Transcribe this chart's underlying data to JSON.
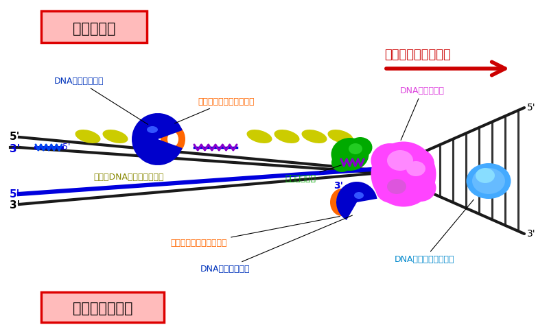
{
  "lagging_label": "ラギング鎖",
  "leading_label": "リーディング鎖",
  "fork_label": "複製フォークの進行",
  "dna_pol_label1": "DNAポリメラーゼ",
  "dna_pol_label2": "DNAポリメラーゼ",
  "sliding_clamp_label1": "スライディングクランプ",
  "sliding_clamp_label2": "スライディングクランプ",
  "ssb_label": "一本鎖DNA結合タンパク質",
  "primase_label": "プライマーゼ",
  "helicase_label": "DNAヘリカーゼ",
  "topoisomerase_label": "DNAトポイソメラーゼ",
  "bg_color": "#ffffff",
  "strand_dark": "#1a1a1a",
  "strand_blue": "#0000dd",
  "ssb_color": "#cccc00",
  "clamp_orange": "#ff6600",
  "poly_blue": "#0000cc",
  "helicase_pink": "#ff44ff",
  "primase_green": "#00aa00",
  "topo_cyan": "#44aaff",
  "zigzag_purple": "#8800cc",
  "zigzag_blue": "#0044ee",
  "label_blue": "#0033bb",
  "label_orange": "#ff6600",
  "label_green": "#00aa00",
  "label_pink": "#dd44dd",
  "label_cyan": "#0088cc",
  "label_olive": "#888800",
  "label_red": "#cc0000"
}
